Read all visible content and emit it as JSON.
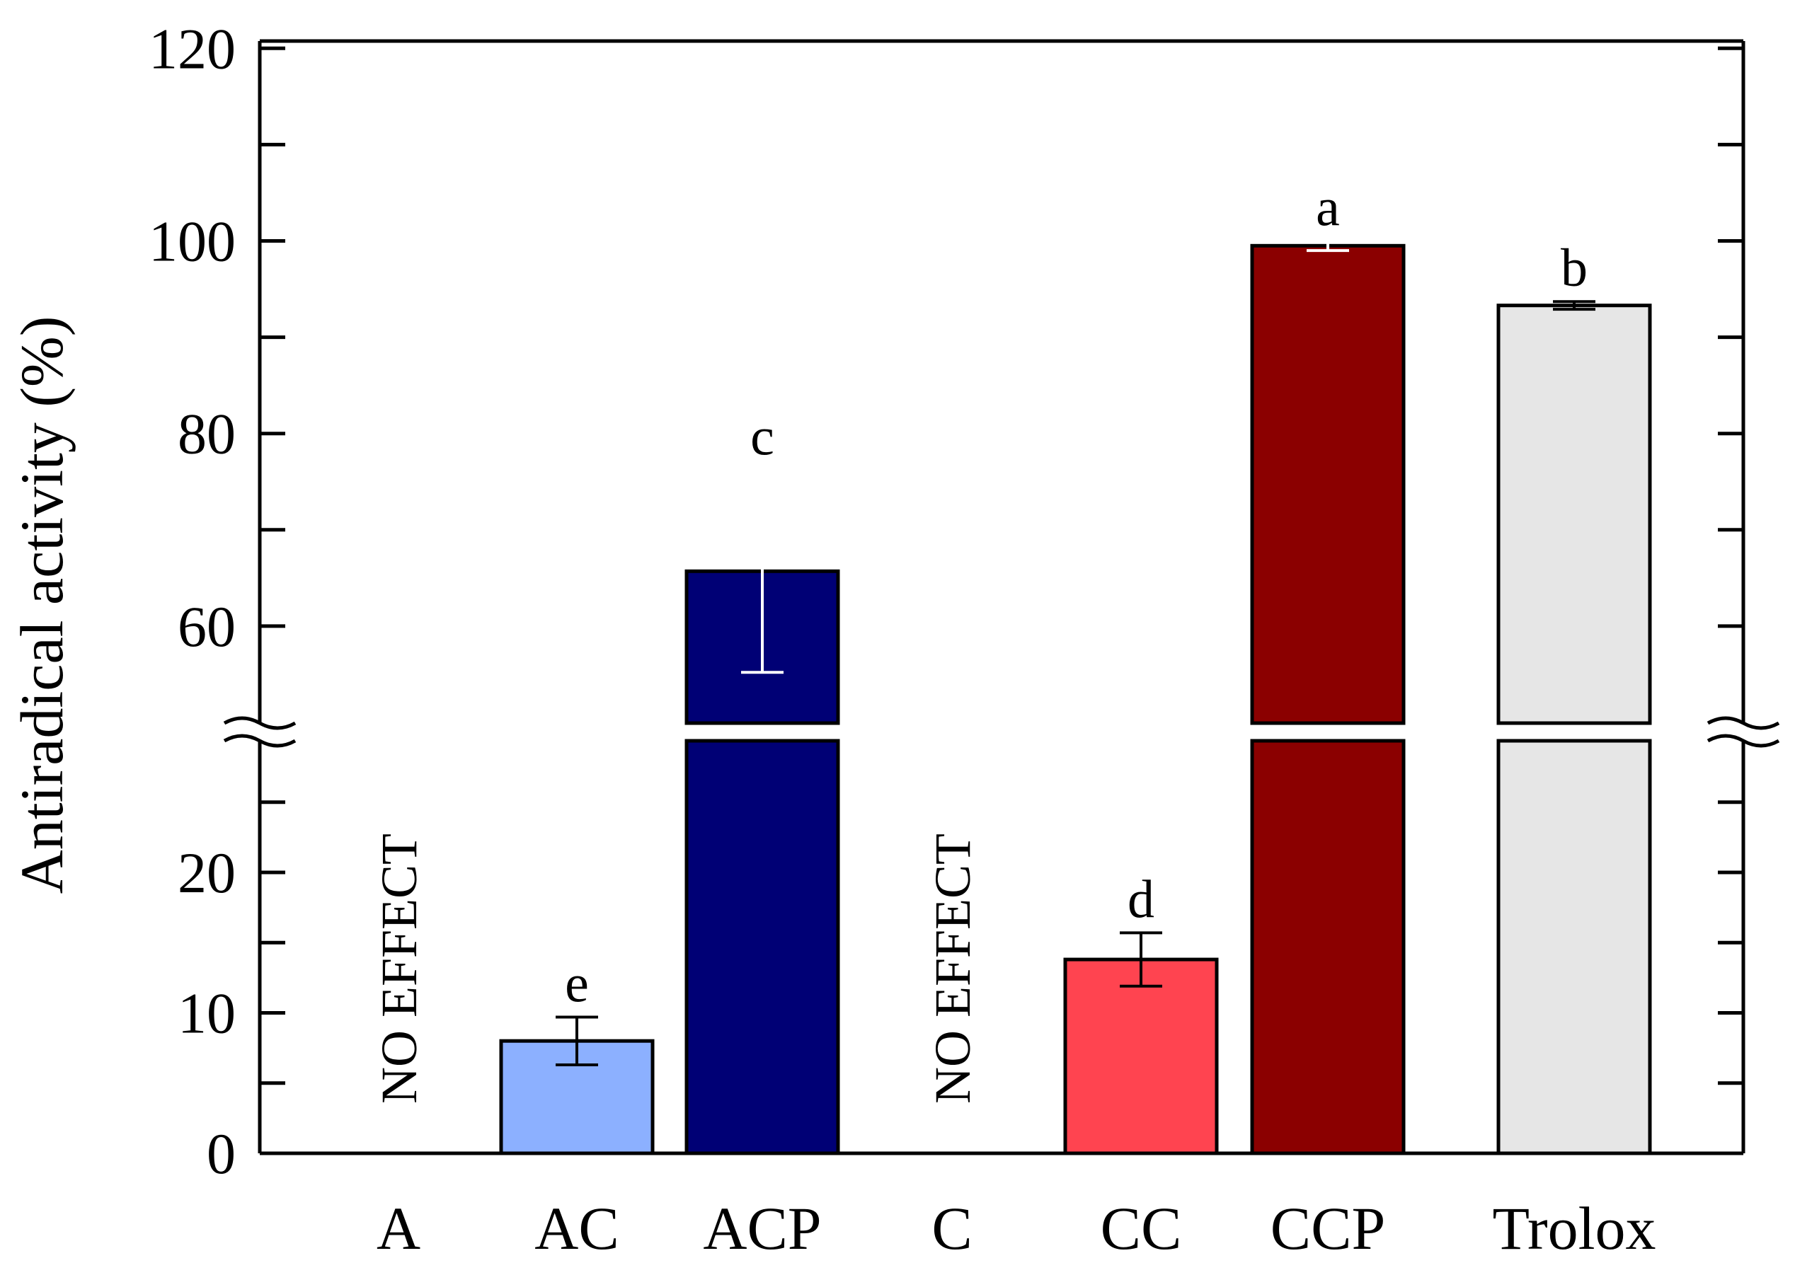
{
  "chart_data": {
    "type": "bar",
    "title": "",
    "xlabel": "",
    "ylabel": "Antiradical activity (%)",
    "axis_break": {
      "lower_range": [
        0,
        25
      ],
      "upper_range": [
        50,
        120
      ]
    },
    "yticks": {
      "lower": [
        {
          "value": 0,
          "label": "0"
        },
        {
          "value": 10,
          "label": "10"
        },
        {
          "value": 20,
          "label": "20"
        }
      ],
      "upper": [
        {
          "value": 60,
          "label": "60"
        },
        {
          "value": 80,
          "label": "80"
        },
        {
          "value": 100,
          "label": "100"
        },
        {
          "value": 120,
          "label": "120"
        }
      ],
      "minor_lower": [
        5,
        15,
        25
      ],
      "minor_upper": [
        70,
        90,
        110
      ]
    },
    "categories": [
      "A",
      "AC",
      "ACP",
      "C",
      "CC",
      "CCP",
      "Trolox"
    ],
    "values": [
      null,
      8.0,
      65.7,
      null,
      13.8,
      99.5,
      93.3
    ],
    "errors": [
      null,
      1.7,
      10.5,
      null,
      1.9,
      0.5,
      0.4
    ],
    "significance": [
      "",
      "e",
      "c",
      "",
      "d",
      "a",
      "b"
    ],
    "annotations": [
      "NO EFFECT",
      "",
      "",
      "NO EFFECT",
      "",
      "",
      ""
    ],
    "colors": [
      "",
      "#8cb0ff",
      "#000075",
      "",
      "#ff4450",
      "#8b0000",
      "#e6e6e6"
    ],
    "error_bar_colors": [
      "",
      "#000000",
      "#ffffff",
      "",
      "#000000",
      "#ffffff",
      "#000000"
    ],
    "frame_color": "#000000"
  }
}
